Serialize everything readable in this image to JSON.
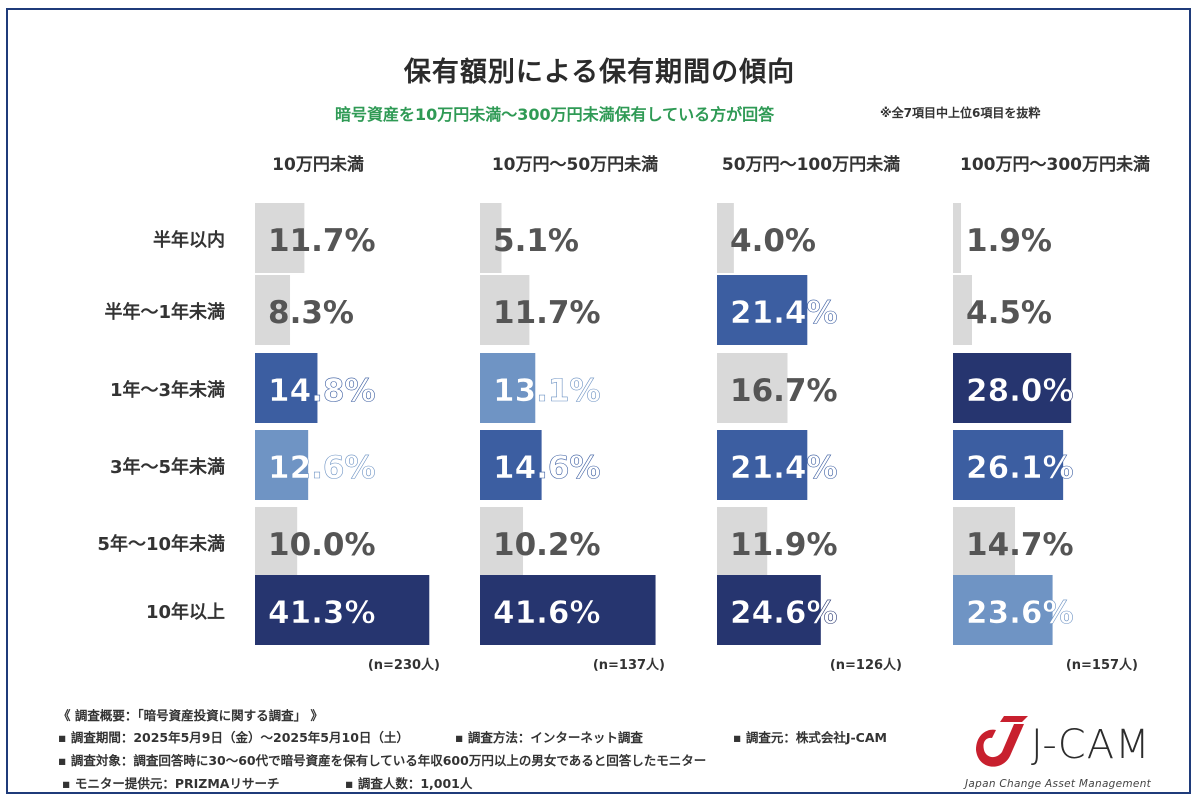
{
  "chart_data": {
    "type": "bar",
    "title": "保有額別による保有期間の傾向",
    "subtitle": "暗号資産を10万円未満〜300万円未満保有している方が回答",
    "note": "※全7項目中上位6項目を抜粋",
    "categories": [
      "半年以内",
      "半年〜1年未満",
      "1年〜3年未満",
      "3年〜5年未満",
      "5年〜10年未満",
      "10年以上"
    ],
    "series": [
      {
        "name": "10万円未満",
        "values": [
          11.7,
          8.3,
          14.8,
          12.6,
          10.0,
          41.3
        ],
        "labels": [
          "11.7%",
          "8.3%",
          "14.8%",
          "12.6%",
          "10.0%",
          "41.3%"
        ],
        "n": "(n=230人)"
      },
      {
        "name": "10万円〜50万円未満",
        "values": [
          5.1,
          11.7,
          13.1,
          14.6,
          10.2,
          41.6
        ],
        "labels": [
          "5.1%",
          "11.7%",
          "13.1%",
          "14.6%",
          "10.2%",
          "41.6%"
        ],
        "n": "(n=137人)"
      },
      {
        "name": "50万円〜100万円未満",
        "values": [
          4.0,
          21.4,
          16.7,
          21.4,
          11.9,
          24.6
        ],
        "labels": [
          "4.0%",
          "21.4%",
          "16.7%",
          "21.4%",
          "11.9%",
          "24.6%"
        ],
        "n": "(n=126人)"
      },
      {
        "name": "100万円〜300万円未満",
        "values": [
          1.9,
          4.5,
          28.0,
          26.1,
          14.7,
          23.6
        ],
        "labels": [
          "1.9%",
          "4.5%",
          "28.0%",
          "26.1%",
          "14.7%",
          "23.6%"
        ],
        "n": "(n=157人)"
      }
    ],
    "xlim": [
      0,
      45
    ],
    "colors": {
      "gray": "#d9d9d9",
      "light_blue": "#6f94c4",
      "mid_blue": "#3c5ea1",
      "dark_navy": "#26356f"
    }
  },
  "footer": {
    "overview": "《 調査概要：「暗号資産投資に関する調査」 》",
    "period": "▪ 調査期間：2025年5月9日（金）〜2025年5月10日（土）",
    "method": "▪ 調査方法：インターネット調査",
    "source": "▪ 調査元：株式会社J-CAM",
    "target": "▪ 調査対象：調査回答時に30〜60代で暗号資産を保有している年収600万円以上の男女であると回答したモニター",
    "provider": "▪ モニター提供元：PRIZMAリサーチ",
    "count": "▪ 調査人数：1,001人"
  },
  "logo": {
    "name": "J-CAM",
    "tagline": "Japan Change Asset Management"
  }
}
